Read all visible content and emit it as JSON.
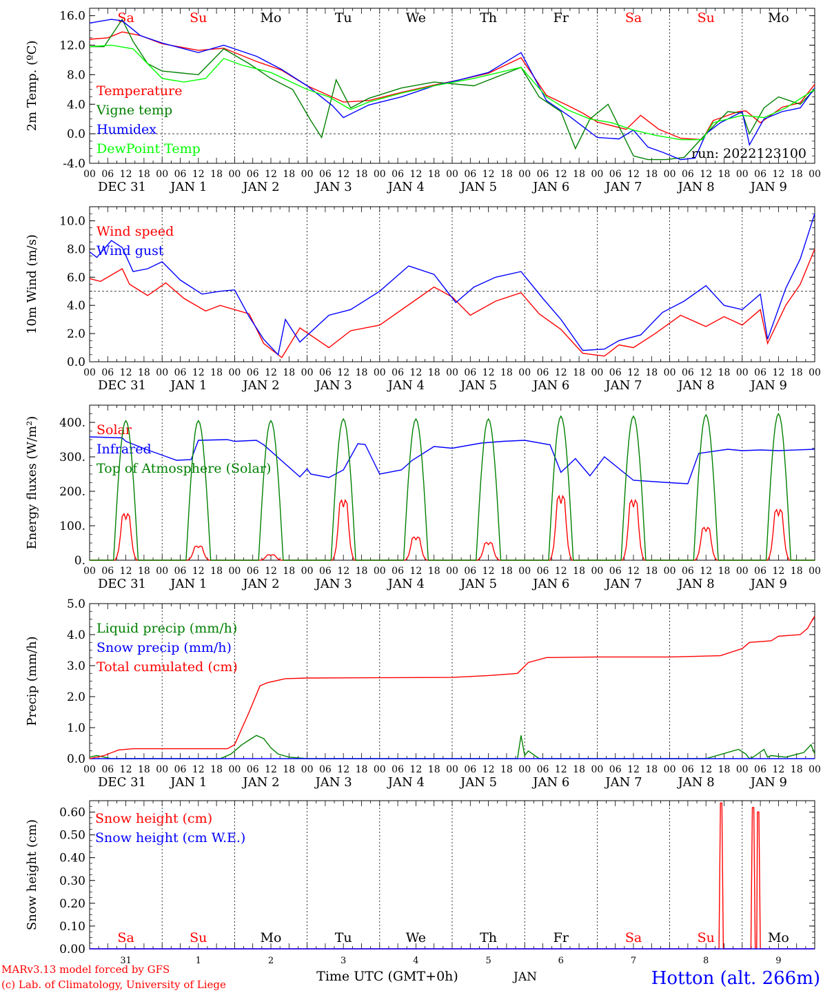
{
  "days": [
    "Sa",
    "Su",
    "Mo",
    "Tu",
    "We",
    "Th",
    "Fr",
    "Sa",
    "Su",
    "Mo"
  ],
  "weekend_days": [
    0,
    1,
    7,
    8
  ],
  "hour_ticks": [
    "00",
    "06",
    "12",
    "18"
  ],
  "hour_tick_end": "00",
  "date_labels": [
    "DEC 31",
    "JAN  1",
    "JAN  2",
    "JAN  3",
    "JAN  4",
    "JAN  5",
    "JAN  6",
    "JAN  7",
    "JAN  8",
    "JAN  9"
  ],
  "bottom": {
    "day_numbers": [
      "31",
      "1",
      "2",
      "3",
      "4",
      "5",
      "6",
      "7",
      "8",
      "9"
    ],
    "month": "JAN",
    "time_label": "Time UTC (GMT+0h)",
    "credit_1": "MARv3.13 model forced by GFS",
    "credit_2": "(c) Lab. of Climatology, University of Liege",
    "station": "Hotton (alt. 266m)"
  },
  "colors": {
    "red": "#ff0000",
    "green": "#008000",
    "blue": "#0000ff",
    "lightgreen": "#00ff00"
  },
  "chart_data": [
    {
      "type": "line",
      "ylabel": "2m Temp. (ºC)",
      "ylim": [
        -4,
        17
      ],
      "yticks": [
        "-4.0",
        "0.0",
        "4.0",
        "8.0",
        "12.0",
        "16.0"
      ],
      "ytick_values": [
        -4,
        0,
        4,
        8,
        12,
        16
      ],
      "reference_line": 0,
      "x_unit": "days since DEC 31 00 UTC",
      "xlim": [
        0,
        10
      ],
      "annotation": "run: 2022123100",
      "series": [
        {
          "name": "Temperature",
          "color": "red",
          "x": [
            0,
            0.25,
            0.45,
            0.7,
            1,
            1.5,
            1.85,
            2.3,
            2.65,
            3,
            3.5,
            3.85,
            4.3,
            4.75,
            5.1,
            5.5,
            5.95,
            6.3,
            6.6,
            6.8,
            7,
            7.4,
            7.6,
            7.85,
            8.15,
            8.45,
            8.6,
            8.95,
            9.05,
            9.25,
            9.55,
            9.8,
            10
          ],
          "y": [
            12.8,
            13,
            13.8,
            13.3,
            12.2,
            11.3,
            11.6,
            9.8,
            8.6,
            6.5,
            4.3,
            4.5,
            5.6,
            6.6,
            7.3,
            8.2,
            10.3,
            5.2,
            3.8,
            2.8,
            1.6,
            0.6,
            2.5,
            0.6,
            -0.6,
            -0.8,
            1.8,
            3,
            3.1,
            1.5,
            3.6,
            4.2,
            6.7
          ]
        },
        {
          "name": "Vigne temp",
          "color": "green",
          "x": [
            0,
            0.2,
            0.45,
            0.6,
            0.8,
            1,
            1.5,
            1.85,
            2.2,
            2.5,
            2.8,
            3.05,
            3.2,
            3.4,
            3.6,
            3.85,
            4.3,
            4.75,
            5.3,
            5.95,
            6.2,
            6.5,
            6.7,
            6.9,
            7.15,
            7.5,
            7.7,
            7.95,
            8.2,
            8.5,
            8.8,
            9,
            9.1,
            9.3,
            9.5,
            9.8,
            10
          ],
          "y": [
            11.8,
            11.8,
            15.5,
            12.5,
            9.5,
            8.5,
            8,
            11.5,
            9.5,
            7.5,
            6,
            1.8,
            -0.5,
            7.3,
            3.5,
            4.8,
            6.2,
            7,
            6.5,
            9,
            5,
            3,
            -2,
            2,
            4,
            -3,
            -3.5,
            -3.5,
            -3.2,
            0,
            3,
            2.8,
            0,
            3.5,
            5,
            4,
            6
          ]
        },
        {
          "name": "Humidex",
          "color": "blue",
          "x": [
            0,
            0.3,
            0.45,
            0.7,
            1,
            1.5,
            1.85,
            2.3,
            2.65,
            3,
            3.35,
            3.5,
            3.85,
            4.3,
            4.75,
            5.1,
            5.5,
            5.95,
            6.3,
            6.6,
            6.8,
            7,
            7.3,
            7.5,
            7.7,
            7.9,
            8.15,
            8.35,
            8.5,
            8.7,
            9,
            9.1,
            9.3,
            9.55,
            9.8,
            10
          ],
          "y": [
            15,
            15.5,
            15.3,
            13.3,
            12.3,
            11,
            12,
            10.5,
            8.7,
            6.5,
            3.8,
            2.2,
            3.9,
            5,
            6.5,
            7.3,
            8.3,
            11,
            4.5,
            2.5,
            1,
            -0.5,
            -0.7,
            0.5,
            -1.8,
            -2.5,
            -3.5,
            -3.3,
            0,
            1.5,
            3,
            -1.5,
            2,
            3,
            3.5,
            6.2
          ]
        },
        {
          "name": "DewPoint Temp",
          "color": "lightgreen",
          "x": [
            0,
            0.3,
            0.6,
            0.8,
            1,
            1.3,
            1.6,
            1.85,
            2.1,
            2.5,
            3,
            3.3,
            3.6,
            3.85,
            4.3,
            4.75,
            5.3,
            5.95,
            6.3,
            6.6,
            6.9,
            7.2,
            7.5,
            7.8,
            8.15,
            8.45,
            8.6,
            9,
            9.3,
            9.6,
            10
          ],
          "y": [
            11.8,
            12,
            11.5,
            9.5,
            7.5,
            7,
            7.5,
            10.2,
            9.3,
            8.3,
            6,
            5,
            3.3,
            4.3,
            5.5,
            6.5,
            7.5,
            9,
            5,
            3.2,
            2,
            1.5,
            0.5,
            -0.2,
            -0.8,
            -0.8,
            1.5,
            2.5,
            2.2,
            3.5,
            6
          ]
        }
      ]
    },
    {
      "type": "line",
      "ylabel": "10m Wind (m/s)",
      "ylim": [
        0,
        11
      ],
      "yticks": [
        "0.0",
        "2.0",
        "4.0",
        "6.0",
        "8.0",
        "10.0"
      ],
      "ytick_values": [
        0,
        2,
        4,
        6,
        8,
        10
      ],
      "reference_line": 5,
      "xlim": [
        0,
        10
      ],
      "series": [
        {
          "name": "Wind speed",
          "color": "red",
          "x": [
            0,
            0.15,
            0.45,
            0.55,
            0.8,
            1.05,
            1.3,
            1.6,
            1.8,
            2.2,
            2.4,
            2.65,
            2.9,
            3.3,
            3.6,
            4,
            4.5,
            4.75,
            5,
            5.25,
            5.6,
            5.95,
            6.2,
            6.5,
            6.8,
            7.1,
            7.3,
            7.5,
            7.8,
            8.15,
            8.5,
            8.75,
            9,
            9.25,
            9.35,
            9.6,
            9.8,
            10
          ],
          "y": [
            5.9,
            5.7,
            6.6,
            5.5,
            4.7,
            5.6,
            4.5,
            3.6,
            4,
            3.4,
            1.3,
            0.3,
            2.4,
            1,
            2.2,
            2.6,
            4.4,
            5.3,
            4.6,
            3.3,
            4.3,
            4.9,
            3.4,
            2.3,
            0.6,
            0.4,
            1.2,
            1,
            2,
            3.3,
            2.5,
            3.2,
            2.6,
            3.7,
            1.3,
            4,
            5.5,
            8
          ]
        },
        {
          "name": "Wind gust",
          "color": "blue",
          "x": [
            0,
            0.1,
            0.3,
            0.45,
            0.6,
            0.8,
            1,
            1.25,
            1.55,
            1.8,
            2,
            2.2,
            2.4,
            2.6,
            2.7,
            2.9,
            3.3,
            3.6,
            4,
            4.4,
            4.75,
            5.05,
            5.3,
            5.6,
            5.95,
            6.25,
            6.5,
            6.8,
            7.1,
            7.3,
            7.6,
            7.9,
            8.2,
            8.5,
            8.75,
            9,
            9.25,
            9.35,
            9.6,
            9.8,
            10
          ],
          "y": [
            7.8,
            7.4,
            8.6,
            8.1,
            6.4,
            6.6,
            7.1,
            5.8,
            4.8,
            5,
            5.1,
            3.2,
            1.6,
            0.5,
            3,
            1.4,
            3.3,
            3.7,
            5,
            6.8,
            6.2,
            4.2,
            5.3,
            6,
            6.4,
            4.5,
            3,
            0.8,
            0.9,
            1.5,
            1.9,
            3.5,
            4.3,
            5.4,
            4,
            3.7,
            4.8,
            1.6,
            5.2,
            7.3,
            10.5
          ]
        }
      ]
    },
    {
      "type": "line",
      "ylabel": "Energy fluxes (W/m²)",
      "ylim": [
        0,
        450
      ],
      "yticks": [
        "0.",
        "100.",
        "200.",
        "300.",
        "400."
      ],
      "ytick_values": [
        0,
        100,
        200,
        300,
        400
      ],
      "xlim": [
        0,
        10
      ],
      "solar_peaks": [
        170,
        52,
        20,
        220,
        85,
        65,
        235,
        220,
        120,
        185
      ],
      "series": [
        {
          "name": "Solar",
          "color": "red"
        },
        {
          "name": "Infrared",
          "color": "blue",
          "x": [
            0,
            0.45,
            0.5,
            0.8,
            1,
            1.2,
            1.4,
            1.5,
            1.9,
            2,
            2.3,
            2.4,
            2.9,
            3,
            3.05,
            3.3,
            3.5,
            3.7,
            3.8,
            4,
            4.3,
            4.45,
            4.75,
            5,
            5.4,
            5.7,
            6,
            6.35,
            6.5,
            6.7,
            6.9,
            7.1,
            7.5,
            8,
            8.25,
            8.4,
            8.8,
            9,
            9.25,
            9.5,
            10
          ],
          "y": [
            358,
            355,
            345,
            320,
            305,
            290,
            292,
            348,
            350,
            345,
            348,
            335,
            242,
            265,
            250,
            240,
            262,
            338,
            336,
            250,
            262,
            290,
            330,
            325,
            340,
            345,
            348,
            335,
            255,
            295,
            245,
            300,
            232,
            225,
            222,
            310,
            322,
            318,
            320,
            318,
            322
          ]
        },
        {
          "name": "Top of Atmosphere (Solar)",
          "color": "green",
          "peaks": [
            405,
            405,
            405,
            410,
            410,
            410,
            418,
            418,
            422,
            425
          ]
        }
      ]
    },
    {
      "type": "line",
      "ylabel": "Precip (mm/h)",
      "ylim": [
        0,
        5
      ],
      "yticks": [
        "0.0",
        "1.0",
        "2.0",
        "3.0",
        "4.0",
        "5.0"
      ],
      "ytick_values": [
        0,
        1,
        2,
        3,
        4,
        5
      ],
      "xlim": [
        0,
        10
      ],
      "series": [
        {
          "name": "Liquid precip (mm/h)",
          "color": "green",
          "x": [
            0,
            0.1,
            0.3,
            1.8,
            1.95,
            2.1,
            2.2,
            2.3,
            2.4,
            2.5,
            2.6,
            2.75,
            3,
            5.5,
            5.9,
            5.95,
            6.0,
            6.05,
            6.2,
            6.5,
            8.5,
            8.95,
            9.05,
            9.1,
            9.15,
            9.3,
            9.35,
            9.4,
            9.6,
            9.85,
            9.95,
            10
          ],
          "y": [
            0.05,
            0.1,
            0,
            0,
            0.15,
            0.45,
            0.6,
            0.75,
            0.65,
            0.35,
            0.15,
            0.05,
            0,
            0,
            0,
            0.75,
            0.1,
            0.25,
            0,
            0,
            0,
            0.3,
            0.15,
            0,
            0.05,
            0.3,
            0.05,
            0.1,
            0.05,
            0.2,
            0.45,
            0.15
          ]
        },
        {
          "name": "Snow precip (mm/h)",
          "color": "blue",
          "x": [
            0,
            10
          ],
          "y": [
            0,
            0
          ]
        },
        {
          "name": "Total cumulated (cm)",
          "color": "red",
          "x": [
            0,
            0.2,
            0.4,
            0.6,
            1.9,
            2.0,
            2.2,
            2.35,
            2.45,
            2.7,
            3,
            5,
            5.5,
            5.9,
            6.05,
            6.3,
            7,
            8,
            8.7,
            9.0,
            9.1,
            9.4,
            9.5,
            9.8,
            9.9,
            10
          ],
          "y": [
            0,
            0.1,
            0.28,
            0.32,
            0.32,
            0.45,
            1.5,
            2.35,
            2.45,
            2.58,
            2.6,
            2.62,
            2.68,
            2.75,
            3.1,
            3.26,
            3.28,
            3.28,
            3.32,
            3.55,
            3.75,
            3.8,
            3.95,
            4,
            4.2,
            4.6
          ]
        }
      ]
    },
    {
      "type": "line",
      "ylabel": "Snow height (cm)",
      "ylim": [
        0,
        0.65
      ],
      "yticks": [
        "0.00",
        "0.10",
        "0.20",
        "0.30",
        "0.40",
        "0.50",
        "0.60"
      ],
      "ytick_values": [
        0,
        0.1,
        0.2,
        0.3,
        0.4,
        0.5,
        0.6
      ],
      "xlim": [
        0,
        10
      ],
      "series": [
        {
          "name": "Snow height (cm)",
          "color": "red",
          "x": [
            0,
            8.68,
            8.7,
            8.72,
            8.74,
            8.76,
            9.12,
            9.14,
            9.16,
            9.18,
            9.2,
            9.21,
            9.23,
            9.25,
            9.27,
            10
          ],
          "y": [
            0,
            0,
            0.64,
            0.64,
            0,
            0,
            0,
            0.62,
            0.62,
            0,
            0,
            0.6,
            0.6,
            0,
            0,
            0
          ]
        },
        {
          "name": "Snow height (cm W.E.)",
          "color": "blue",
          "x": [
            0,
            10
          ],
          "y": [
            0,
            0
          ]
        }
      ]
    }
  ]
}
